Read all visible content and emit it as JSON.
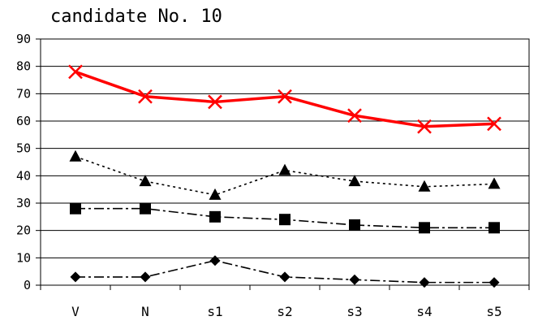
{
  "chart_data": {
    "type": "line",
    "title": "candidate No. 10",
    "xlabel": "",
    "ylabel": "",
    "categories": [
      "V",
      "N",
      "s1",
      "s2",
      "s3",
      "s4",
      "s5"
    ],
    "ylim": [
      0,
      90
    ],
    "yticks": [
      0,
      10,
      20,
      30,
      40,
      50,
      60,
      70,
      80,
      90
    ],
    "grid": true,
    "legend": "none",
    "series": [
      {
        "values": [
          78,
          69,
          67,
          69,
          62,
          58,
          59
        ],
        "marker": "x",
        "color": "#ff0000",
        "line": "solid"
      },
      {
        "values": [
          47,
          38,
          33,
          42,
          38,
          36,
          37
        ],
        "marker": "triangle",
        "color": "#000000",
        "line": "dotted"
      },
      {
        "values": [
          28,
          28,
          25,
          24,
          22,
          21,
          21
        ],
        "marker": "square",
        "color": "#000000",
        "line": "dashdot"
      },
      {
        "values": [
          3,
          3,
          9,
          3,
          2,
          1,
          1
        ],
        "marker": "diamond",
        "color": "#000000",
        "line": "dashdot"
      }
    ]
  }
}
